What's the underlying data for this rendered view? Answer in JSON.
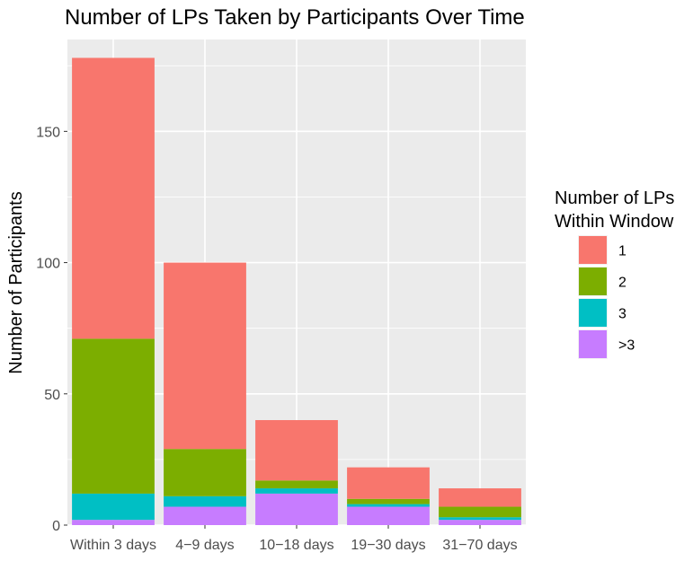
{
  "chart_data": {
    "type": "bar",
    "stacked": true,
    "title": "Number of LPs Taken by Participants Over Time",
    "xlabel": "",
    "ylabel": "Number of Participants",
    "categories": [
      "Within 3 days",
      "4−9 days",
      "10−18 days",
      "19−30 days",
      "31−70 days"
    ],
    "ylim": [
      0,
      185
    ],
    "yticks": [
      0,
      50,
      100,
      150
    ],
    "grid": true,
    "legend": {
      "title_lines": [
        "Number of LPs",
        "Within Window"
      ],
      "position": "right"
    },
    "series": [
      {
        "name": "1",
        "color": "#F8766D",
        "values": [
          107,
          71,
          23,
          12,
          7
        ]
      },
      {
        "name": "2",
        "color": "#7CAE00",
        "values": [
          59,
          18,
          3,
          2,
          4
        ]
      },
      {
        "name": "3",
        "color": "#00BFC4",
        "values": [
          10,
          4,
          2,
          1,
          1
        ]
      },
      {
        "name": ">3",
        "color": "#C77CFF",
        "values": [
          2,
          7,
          12,
          7,
          2
        ]
      }
    ],
    "colors": {
      "panel_background": "#EBEBEB",
      "gridline": "#FFFFFF"
    }
  }
}
